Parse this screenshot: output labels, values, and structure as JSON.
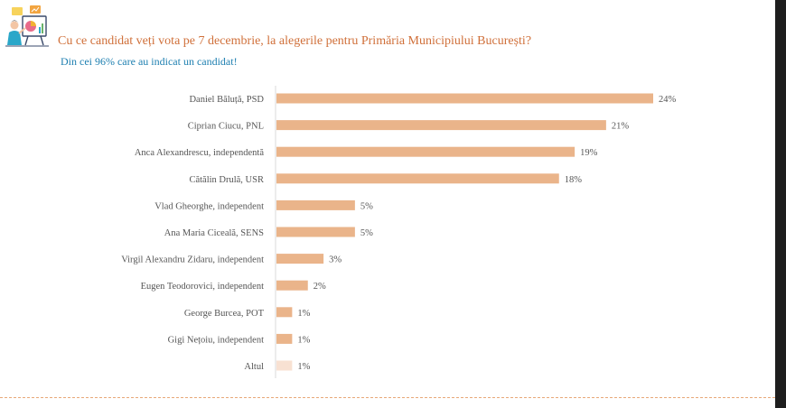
{
  "header": {
    "title": "Cu ce candidat veți vota pe 7 decembrie, la alegerile pentru Primăria Municipiului București?",
    "subtitle": "Din cei 96% care au indicat un candidat!"
  },
  "colors": {
    "bar": "#eab48a",
    "bar_other": "#f8e1d2",
    "title": "#d0703a",
    "subtitle": "#1d7fb0",
    "axis": "#d9d9d9"
  },
  "logo": {
    "icon": "presenter-with-charts-icon"
  },
  "chart_data": {
    "type": "bar",
    "orientation": "horizontal",
    "title": "Cu ce candidat veți vota pe 7 decembrie, la alegerile pentru Primăria Municipiului București?",
    "subtitle": "Din cei 96% care au indicat un candidat!",
    "xlabel": "",
    "ylabel": "",
    "xlim": [
      0,
      24
    ],
    "grid": false,
    "legend": "none",
    "categories": [
      "Daniel Băluță, PSD",
      "Ciprian Ciucu, PNL",
      "Anca Alexandrescu, independentă",
      "Cătălin Drulă, USR",
      "Vlad Gheorghe, independent",
      "Ana Maria Ciceală, SENS",
      "Virgil Alexandru Zidaru, independent",
      "Eugen Teodorovici, independent",
      "George Burcea, POT",
      "Gigi Nețoiu, independent",
      "Altul"
    ],
    "values": [
      24,
      21,
      19,
      18,
      5,
      5,
      3,
      2,
      1,
      1,
      1
    ],
    "value_labels": [
      "24%",
      "21%",
      "19%",
      "18%",
      "5%",
      "5%",
      "3%",
      "2%",
      "1%",
      "1%",
      "1%"
    ]
  }
}
